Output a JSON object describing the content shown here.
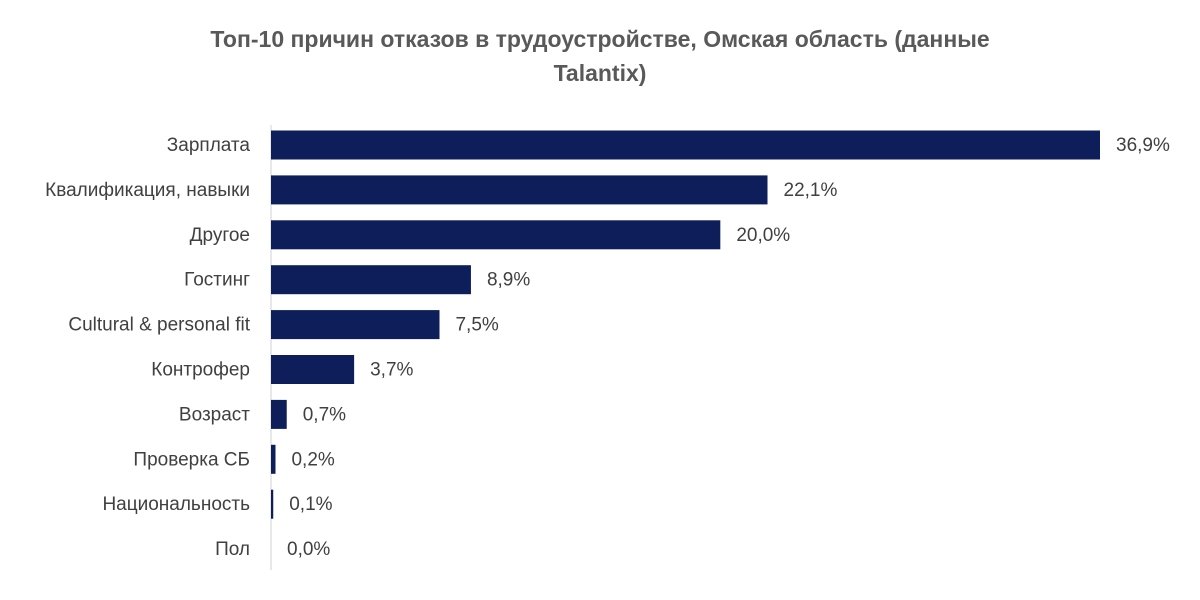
{
  "chart_data": {
    "type": "bar",
    "orientation": "horizontal",
    "title_line1": "Топ-10 причин отказов в трудоустройстве, Омская область (данные",
    "title_line2": "Talantix)",
    "categories": [
      "Зарплата",
      "Квалификация, навыки",
      "Другое",
      "Гостинг",
      "Cultural & personal fit",
      "Контрофер",
      "Возраст",
      "Проверка СБ",
      "Национальность",
      "Пол"
    ],
    "values": [
      36.9,
      22.1,
      20.0,
      8.9,
      7.5,
      3.7,
      0.7,
      0.2,
      0.1,
      0.0
    ],
    "data_labels": [
      "36,9%",
      "22,1%",
      "20,0%",
      "8,9%",
      "7,5%",
      "3,7%",
      "0,7%",
      "0,2%",
      "0,1%",
      "0,0%"
    ],
    "xlabel": "",
    "ylabel": "",
    "xlim": [
      0,
      36.9
    ],
    "grid": false,
    "legend": "none",
    "bar_color": "#0e1e5b",
    "label_color": "#404040",
    "axis_color": "#d9d9d9"
  }
}
